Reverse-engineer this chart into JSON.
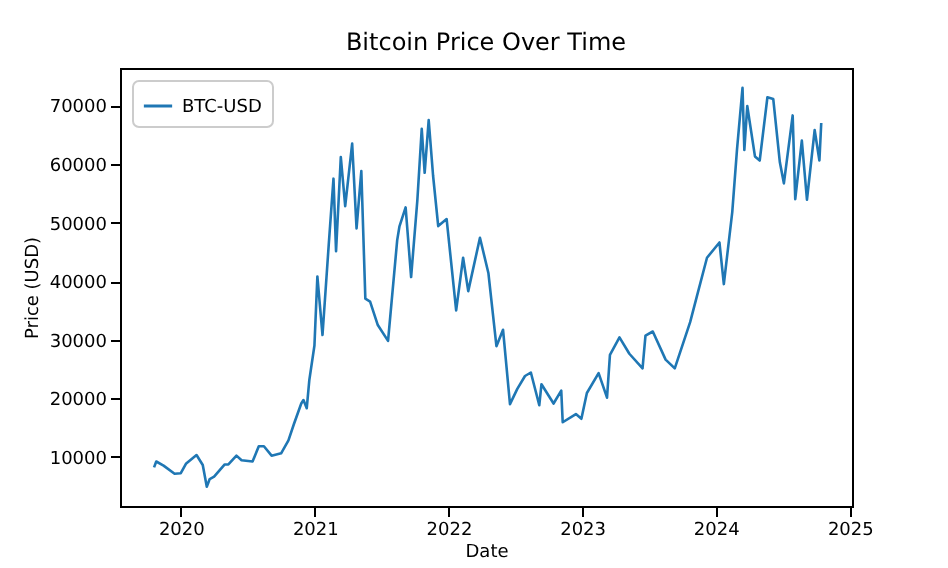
{
  "chart_data": {
    "type": "line",
    "title": "Bitcoin Price Over Time",
    "xlabel": "Date",
    "ylabel": "Price (USD)",
    "x": [
      "2019-10-20",
      "2019-10-26",
      "2019-11-15",
      "2019-12-15",
      "2020-01-01",
      "2020-01-15",
      "2020-02-13",
      "2020-03-01",
      "2020-03-12",
      "2020-03-20",
      "2020-04-01",
      "2020-04-30",
      "2020-05-10",
      "2020-06-01",
      "2020-06-15",
      "2020-07-15",
      "2020-08-01",
      "2020-08-15",
      "2020-09-05",
      "2020-10-01",
      "2020-10-21",
      "2020-11-05",
      "2020-11-25",
      "2020-12-01",
      "2020-12-10",
      "2020-12-17",
      "2020-12-31",
      "2021-01-08",
      "2021-01-22",
      "2021-02-08",
      "2021-02-21",
      "2021-02-28",
      "2021-03-13",
      "2021-03-25",
      "2021-04-13",
      "2021-04-25",
      "2021-05-08",
      "2021-05-19",
      "2021-06-01",
      "2021-06-22",
      "2021-07-20",
      "2021-08-14",
      "2021-08-20",
      "2021-09-06",
      "2021-09-21",
      "2021-10-08",
      "2021-10-20",
      "2021-10-28",
      "2021-11-08",
      "2021-11-20",
      "2021-12-04",
      "2021-12-27",
      "2022-01-22",
      "2022-02-10",
      "2022-02-24",
      "2022-03-28",
      "2022-04-20",
      "2022-05-12",
      "2022-05-30",
      "2022-06-18",
      "2022-07-08",
      "2022-07-29",
      "2022-08-14",
      "2022-09-06",
      "2022-09-12",
      "2022-10-15",
      "2022-11-05",
      "2022-11-09",
      "2022-12-15",
      "2022-12-30",
      "2023-01-14",
      "2023-02-15",
      "2023-03-10",
      "2023-03-18",
      "2023-04-13",
      "2023-05-10",
      "2023-06-15",
      "2023-06-23",
      "2023-07-13",
      "2023-08-17",
      "2023-09-11",
      "2023-10-23",
      "2023-11-10",
      "2023-12-08",
      "2024-01-11",
      "2024-01-23",
      "2024-02-15",
      "2024-02-28",
      "2024-03-14",
      "2024-03-19",
      "2024-03-27",
      "2024-04-17",
      "2024-04-30",
      "2024-05-21",
      "2024-06-06",
      "2024-06-24",
      "2024-07-05",
      "2024-07-29",
      "2024-08-05",
      "2024-08-23",
      "2024-09-06",
      "2024-09-27",
      "2024-10-10",
      "2024-10-15"
    ],
    "series": [
      {
        "name": "BTC-USD",
        "color": "#1f77b4",
        "values": [
          8200,
          9200,
          8500,
          7100,
          7200,
          8800,
          10300,
          8600,
          4900,
          6200,
          6600,
          8700,
          8700,
          10200,
          9400,
          9200,
          11800,
          11800,
          10200,
          10600,
          12800,
          15600,
          19100,
          19700,
          18300,
          23100,
          29000,
          40800,
          30800,
          46200,
          57500,
          45100,
          61200,
          52800,
          63500,
          49000,
          58800,
          37000,
          36500,
          32500,
          29800,
          47000,
          49300,
          52600,
          40700,
          53800,
          66000,
          58500,
          67500,
          58000,
          49400,
          50600,
          35000,
          44000,
          38300,
          47400,
          41400,
          28900,
          31700,
          19000,
          21600,
          23800,
          24400,
          18800,
          22400,
          19100,
          21300,
          15900,
          17300,
          16500,
          20900,
          24300,
          20100,
          27400,
          30400,
          27600,
          25100,
          30700,
          31400,
          26600,
          25100,
          33000,
          37300,
          44000,
          46600,
          39500,
          51800,
          62500,
          73000,
          62400,
          69900,
          61300,
          60600,
          71400,
          71100,
          60300,
          56700,
          68300,
          54000,
          64000,
          53900,
          65800,
          60600,
          67000
        ]
      }
    ],
    "xlim": [
      "2019-07-19",
      "2025-01-07"
    ],
    "xticks": [
      "2020",
      "2021",
      "2022",
      "2023",
      "2024",
      "2025"
    ],
    "ylim": [
      1600,
      76400
    ],
    "yticks": [
      10000,
      20000,
      30000,
      40000,
      50000,
      60000,
      70000
    ],
    "legend": "top left"
  }
}
